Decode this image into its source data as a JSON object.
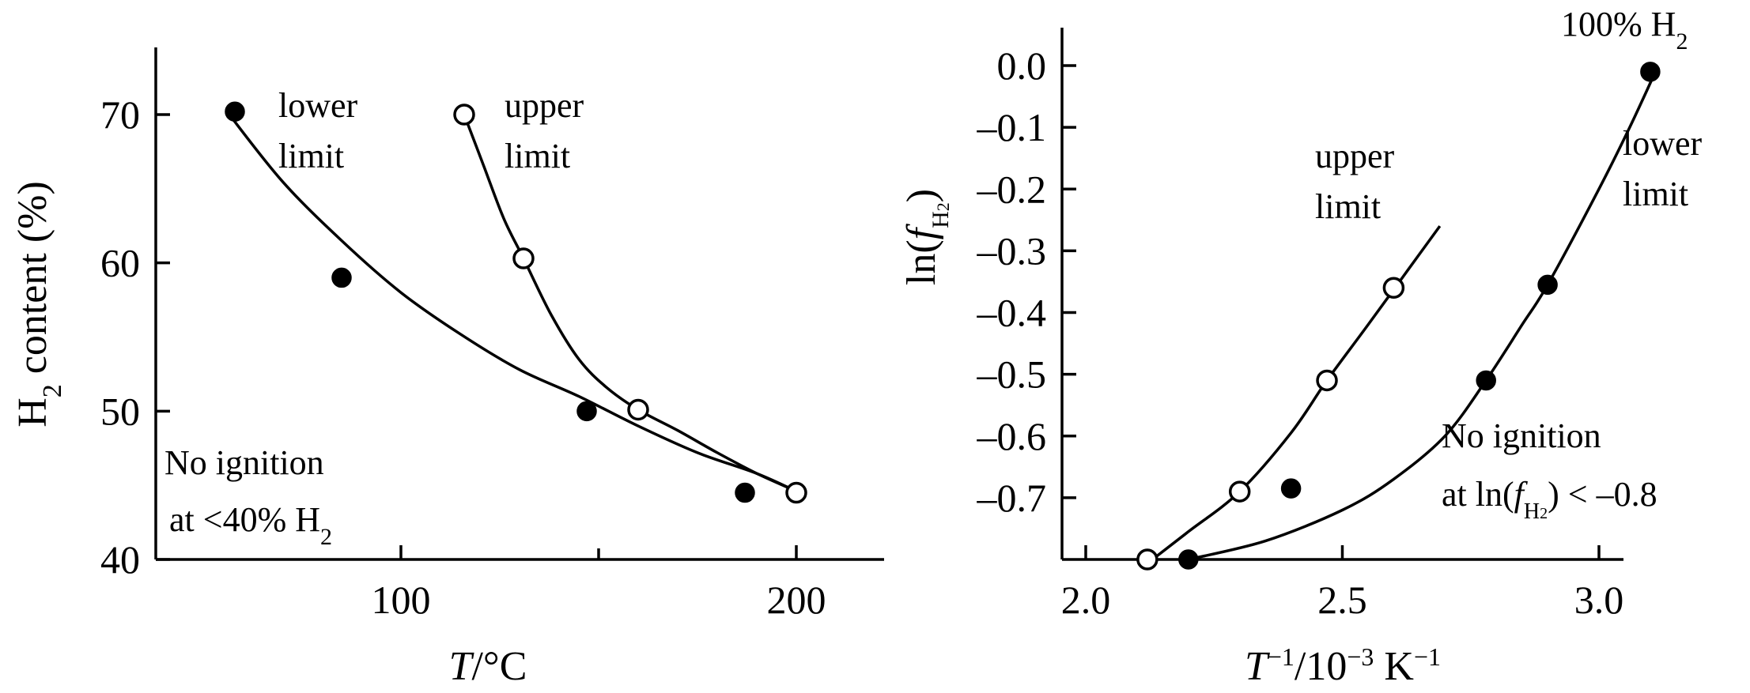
{
  "chart_data": [
    {
      "type": "scatter",
      "title": "",
      "xlabel": "T/°C",
      "ylabel": "H2 content (%)",
      "xlim": [
        40,
        220
      ],
      "ylim": [
        40,
        73
      ],
      "xticks_major": [
        100,
        200
      ],
      "xticks_minor": [
        150
      ],
      "yticks": [
        40,
        50,
        60,
        70
      ],
      "grid": false,
      "series": [
        {
          "name": "lower limit",
          "marker": "filled",
          "points": [
            [
              58,
              70.2
            ],
            [
              85,
              59
            ],
            [
              147,
              50
            ],
            [
              187,
              44.5
            ]
          ],
          "curve": [
            [
              56,
              70.2
            ],
            [
              70,
              65.5
            ],
            [
              85,
              61.5
            ],
            [
              100,
              58
            ],
            [
              115,
              55.2
            ],
            [
              130,
              52.8
            ],
            [
              145,
              51
            ],
            [
              160,
              49
            ],
            [
              175,
              47.2
            ],
            [
              190,
              45.8
            ],
            [
              200,
              44.6
            ]
          ]
        },
        {
          "name": "upper limit",
          "marker": "open",
          "points": [
            [
              116,
              70
            ],
            [
              131,
              60.3
            ],
            [
              160,
              50.1
            ],
            [
              200,
              44.5
            ]
          ],
          "curve": [
            [
              116,
              70
            ],
            [
              121,
              66.5
            ],
            [
              126,
              63
            ],
            [
              131,
              60.3
            ],
            [
              138,
              56.5
            ],
            [
              145,
              53.5
            ],
            [
              152,
              51.6
            ],
            [
              160,
              50.1
            ],
            [
              170,
              48.7
            ],
            [
              180,
              47.2
            ],
            [
              190,
              45.8
            ],
            [
              200,
              44.6
            ]
          ]
        }
      ],
      "annotations": {
        "lower_limit_label": [
          "lower",
          "limit"
        ],
        "upper_limit_label": [
          "upper",
          "limit"
        ],
        "no_ignition": [
          "No ignition",
          "at <40% H2"
        ]
      }
    },
    {
      "type": "scatter",
      "title": "",
      "xlabel": "T⁻¹/10⁻³ K⁻¹",
      "ylabel": "ln(fH2)",
      "xlim": [
        1.8,
        3.2
      ],
      "ylim": [
        -0.8,
        0.02
      ],
      "xticks": [
        2.0,
        2.5,
        3.0
      ],
      "yticks": [
        0.0,
        -0.1,
        -0.2,
        -0.3,
        -0.4,
        -0.5,
        -0.6,
        -0.7
      ],
      "ytick_labels": [
        "0.0",
        "–0.1",
        "–0.2",
        "–0.3",
        "–0.4",
        "–0.5",
        "–0.6",
        "–0.7"
      ],
      "grid": false,
      "series": [
        {
          "name": "upper limit",
          "marker": "open",
          "points": [
            [
              2.12,
              -0.8
            ],
            [
              2.3,
              -0.69
            ],
            [
              2.47,
              -0.51
            ],
            [
              2.6,
              -0.36
            ]
          ],
          "curve": [
            [
              2.13,
              -0.8
            ],
            [
              2.2,
              -0.755
            ],
            [
              2.3,
              -0.69
            ],
            [
              2.4,
              -0.595
            ],
            [
              2.47,
              -0.51
            ],
            [
              2.55,
              -0.42
            ],
            [
              2.62,
              -0.34
            ],
            [
              2.69,
              -0.26
            ]
          ]
        },
        {
          "name": "lower limit",
          "marker": "filled",
          "points": [
            [
              2.2,
              -0.8
            ],
            [
              2.4,
              -0.685
            ],
            [
              2.78,
              -0.51
            ],
            [
              2.9,
              -0.355
            ],
            [
              3.1,
              -0.01
            ]
          ],
          "curve": [
            [
              2.2,
              -0.8
            ],
            [
              2.35,
              -0.77
            ],
            [
              2.5,
              -0.72
            ],
            [
              2.6,
              -0.67
            ],
            [
              2.7,
              -0.6
            ],
            [
              2.78,
              -0.51
            ],
            [
              2.85,
              -0.42
            ],
            [
              2.9,
              -0.355
            ],
            [
              3.0,
              -0.2
            ],
            [
              3.06,
              -0.1
            ],
            [
              3.11,
              -0.01
            ]
          ]
        }
      ],
      "annotations": {
        "pure_h2": "100% H2",
        "upper_limit_label": [
          "upper",
          "limit"
        ],
        "lower_limit_label": [
          "lower",
          "limit"
        ],
        "no_ignition": [
          "No ignition",
          "at ln(fH2) < –0.8"
        ]
      }
    }
  ]
}
